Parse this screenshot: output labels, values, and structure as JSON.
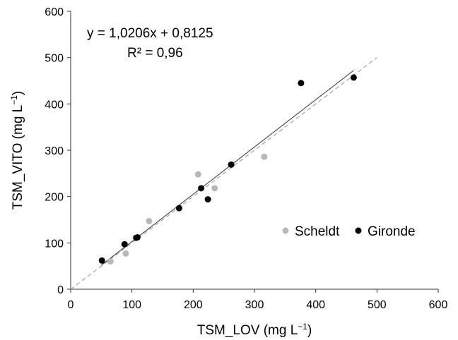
{
  "chart_data": {
    "type": "scatter",
    "xlabel": "TSM_LOV (mg  L",
    "xlabel_sup": "−1",
    "xlabel_close": ")",
    "ylabel": "TSM_VITO (mg  L",
    "ylabel_sup": "−1",
    "ylabel_close": ")",
    "xlim": [
      0,
      600
    ],
    "ylim": [
      0,
      600
    ],
    "xticks": [
      0,
      100,
      200,
      300,
      400,
      500,
      600
    ],
    "yticks": [
      0,
      100,
      200,
      300,
      400,
      500,
      600
    ],
    "grid": false,
    "legend_position": "right",
    "annotations": {
      "equation": "y = 1,0206x + 0,8125",
      "r2": "R² = 0,96"
    },
    "fit_line": {
      "slope": 1.0206,
      "intercept": 0.8125,
      "x_range": [
        50,
        462
      ],
      "color": "#333333"
    },
    "identity_line": {
      "x_range": [
        0,
        500
      ],
      "color": "#aaaaaa",
      "dashed": true
    },
    "series": [
      {
        "name": "Scheldt",
        "color": "#b8b8b8",
        "points": [
          [
            65,
            60
          ],
          [
            90,
            77
          ],
          [
            128,
            147
          ],
          [
            208,
            248
          ],
          [
            235,
            218
          ],
          [
            316,
            286
          ]
        ]
      },
      {
        "name": "Gironde",
        "color": "#000000",
        "points": [
          [
            51,
            62
          ],
          [
            88,
            97
          ],
          [
            107,
            111
          ],
          [
            109,
            112
          ],
          [
            177,
            175
          ],
          [
            213,
            218
          ],
          [
            224,
            194
          ],
          [
            262,
            269
          ],
          [
            376,
            445
          ],
          [
            462,
            457
          ]
        ]
      }
    ]
  }
}
